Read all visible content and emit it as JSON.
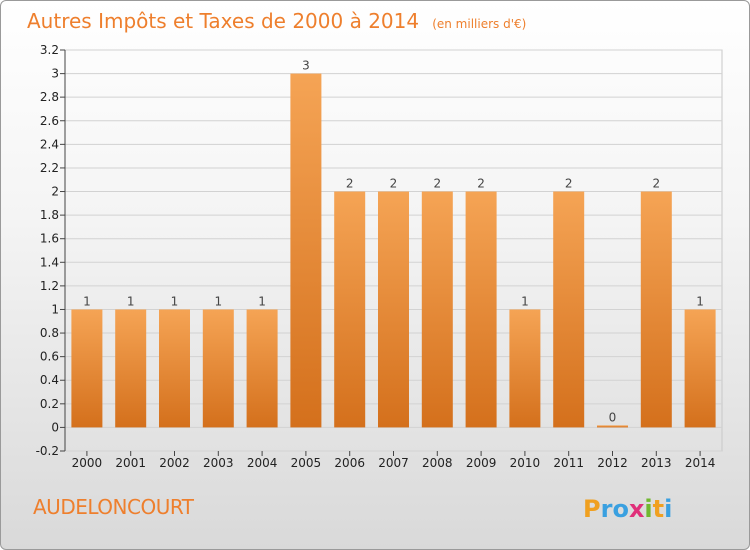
{
  "chart_data": {
    "type": "bar",
    "title": "Autres Impôts et Taxes de 2000 à 2014",
    "subtitle": "(en milliers d'€)",
    "categories": [
      "2000",
      "2001",
      "2002",
      "2003",
      "2004",
      "2005",
      "2006",
      "2007",
      "2008",
      "2009",
      "2010",
      "2011",
      "2012",
      "2013",
      "2014"
    ],
    "values": [
      1,
      1,
      1,
      1,
      1,
      3,
      2,
      2,
      2,
      2,
      1,
      2,
      0,
      2,
      1
    ],
    "data_labels": [
      "1",
      "1",
      "1",
      "1",
      "1",
      "3",
      "2",
      "2",
      "2",
      "2",
      "1",
      "2",
      "0",
      "2",
      "1"
    ],
    "ylim": [
      -0.2,
      3.2
    ],
    "yticks": [
      -0.2,
      0,
      0.2,
      0.4,
      0.6,
      0.8,
      1,
      1.2,
      1.4,
      1.6,
      1.8,
      2,
      2.2,
      2.4,
      2.6,
      2.8,
      3,
      3.2
    ],
    "ytick_labels": [
      "-0.2",
      "0",
      "0.2",
      "0.4",
      "0.6",
      "0.8",
      "1",
      "1.2",
      "1.4",
      "1.6",
      "1.8",
      "2",
      "2.2",
      "2.4",
      "2.6",
      "2.8",
      "3",
      "3.2"
    ],
    "grid": true,
    "bar_color_top": "#f5a455",
    "bar_color_bottom": "#d4701c"
  },
  "footer": {
    "commune": "AUDELONCOURT",
    "logo": {
      "letters": [
        "P",
        "r",
        "o",
        "x",
        "i",
        "t",
        "i"
      ],
      "colors": [
        "#f0a020",
        "#3aa0e0",
        "#3aa0e0",
        "#e0307a",
        "#70b830",
        "#f0a020",
        "#3aa0e0"
      ]
    }
  }
}
